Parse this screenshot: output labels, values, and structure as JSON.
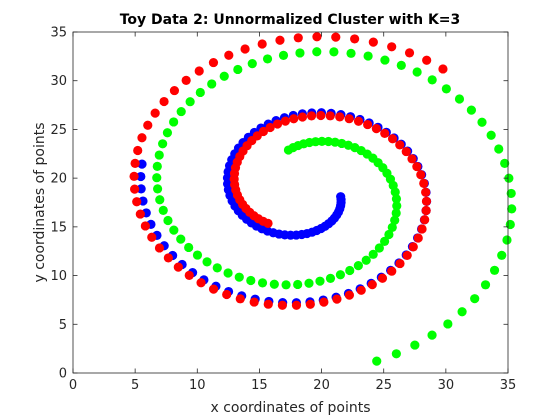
{
  "chart_data": {
    "type": "scatter",
    "title": "Toy Data 2: Unnormalized Cluster with K=3",
    "xlabel": "x coordinates of points",
    "ylabel": "y coordinates of points",
    "xlim": [
      0,
      35
    ],
    "ylim": [
      0,
      35
    ],
    "xticks": [
      0,
      5,
      10,
      15,
      20,
      25,
      30,
      35
    ],
    "yticks": [
      0,
      5,
      10,
      15,
      20,
      25,
      30,
      35
    ],
    "grid": false,
    "box": true,
    "series": [
      {
        "color": "#0000ff",
        "spiral": {
          "center": [
            18.7,
            18.7
          ],
          "theta_start": 0.209,
          "theta_end": 9.63,
          "r_start": 2.9,
          "r_end": 13.43,
          "num_points": 100,
          "direction": -1
        }
      },
      {
        "color": "#ff0000",
        "spiral": {
          "center": [
            18.7,
            18.7
          ],
          "theta_start": 2.303,
          "theta_end": 11.72,
          "r_start": 4.5,
          "r_end": 16.7,
          "num_points": 100,
          "direction": -1
        }
      },
      {
        "color": "#00ff00",
        "spiral": {
          "center": [
            18.7,
            18.7
          ],
          "theta_start": 4.397,
          "theta_end": 13.82,
          "r_start": 4.4,
          "r_end": 18.4,
          "num_points": 100,
          "direction": -1
        }
      }
    ]
  }
}
